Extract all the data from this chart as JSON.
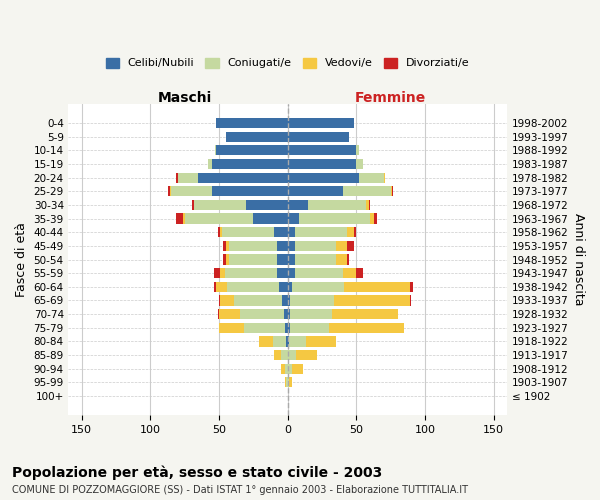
{
  "age_groups": [
    "100+",
    "95-99",
    "90-94",
    "85-89",
    "80-84",
    "75-79",
    "70-74",
    "65-69",
    "60-64",
    "55-59",
    "50-54",
    "45-49",
    "40-44",
    "35-39",
    "30-34",
    "25-29",
    "20-24",
    "15-19",
    "10-14",
    "5-9",
    "0-4"
  ],
  "birth_years": [
    "≤ 1902",
    "1903-1907",
    "1908-1912",
    "1913-1917",
    "1918-1922",
    "1923-1927",
    "1928-1932",
    "1933-1937",
    "1938-1942",
    "1943-1947",
    "1948-1952",
    "1953-1957",
    "1958-1962",
    "1963-1967",
    "1968-1972",
    "1973-1977",
    "1978-1982",
    "1983-1987",
    "1988-1992",
    "1993-1997",
    "1998-2002"
  ],
  "male": {
    "celibi": [
      0,
      0,
      0,
      0,
      1,
      2,
      3,
      4,
      6,
      8,
      8,
      8,
      10,
      25,
      30,
      55,
      65,
      55,
      52,
      45,
      52
    ],
    "coniugati": [
      0,
      1,
      2,
      5,
      10,
      30,
      32,
      35,
      38,
      38,
      35,
      35,
      38,
      50,
      38,
      30,
      15,
      3,
      1,
      0,
      0
    ],
    "vedovi": [
      0,
      1,
      3,
      5,
      10,
      18,
      15,
      10,
      8,
      3,
      2,
      2,
      1,
      1,
      0,
      1,
      0,
      0,
      0,
      0,
      0
    ],
    "divorziati": [
      0,
      0,
      0,
      0,
      0,
      0,
      1,
      1,
      2,
      5,
      2,
      2,
      2,
      5,
      2,
      1,
      1,
      0,
      0,
      0,
      0
    ]
  },
  "female": {
    "nubili": [
      0,
      0,
      0,
      0,
      1,
      2,
      2,
      2,
      3,
      5,
      5,
      5,
      5,
      8,
      15,
      40,
      52,
      50,
      50,
      45,
      48
    ],
    "coniugate": [
      0,
      1,
      3,
      6,
      12,
      28,
      30,
      32,
      38,
      35,
      30,
      30,
      38,
      52,
      42,
      35,
      18,
      5,
      2,
      0,
      0
    ],
    "vedove": [
      0,
      2,
      8,
      15,
      22,
      55,
      48,
      55,
      48,
      10,
      8,
      8,
      5,
      3,
      2,
      1,
      1,
      0,
      0,
      0,
      0
    ],
    "divorziate": [
      0,
      0,
      0,
      0,
      0,
      0,
      0,
      1,
      2,
      5,
      2,
      5,
      2,
      2,
      1,
      1,
      0,
      0,
      0,
      0,
      0
    ]
  },
  "colors": {
    "celibi": "#3a6ea5",
    "coniugati": "#c5d9a0",
    "vedovi": "#f5c842",
    "divorziati": "#cc2222"
  },
  "xlim": 160,
  "title": "Popolazione per età, sesso e stato civile - 2003",
  "subtitle": "COMUNE DI POZZOMAGGIORE (SS) - Dati ISTAT 1° gennaio 2003 - Elaborazione TUTTITALIA.IT",
  "ylabel_left": "Fasce di età",
  "ylabel_right": "Anni di nascita",
  "xlabel_left": "Maschi",
  "xlabel_right": "Femmine",
  "bg_color": "#f5f5f0",
  "plot_bg_color": "#ffffff"
}
